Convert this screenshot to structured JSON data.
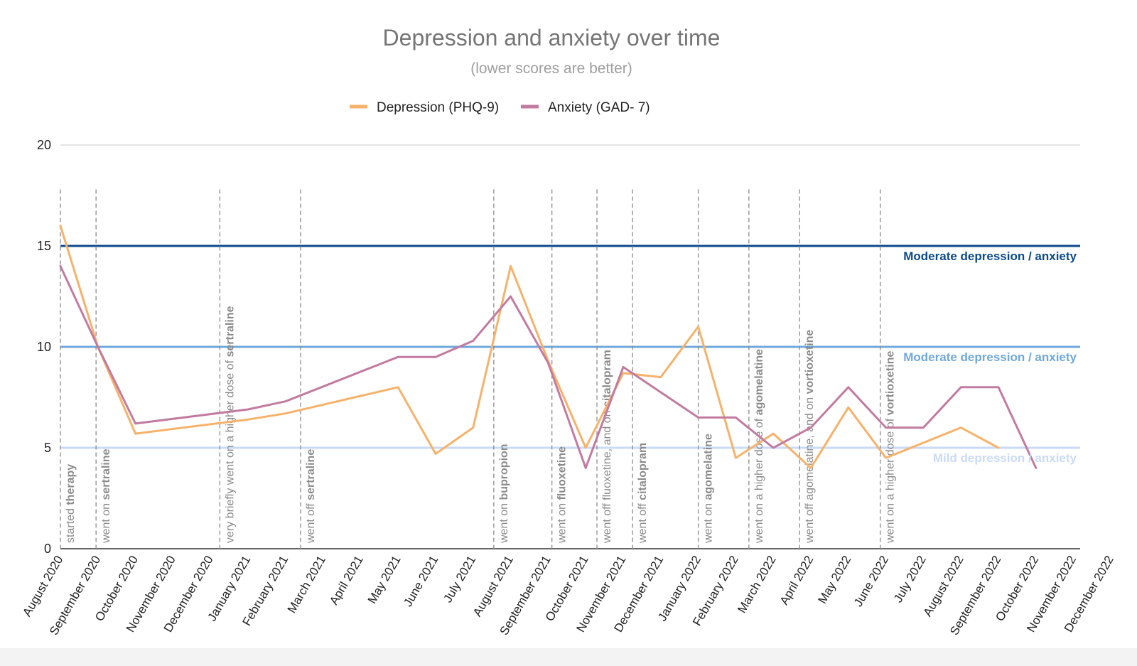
{
  "chart_data": {
    "type": "line",
    "title": "Depression and anxiety over time",
    "subtitle": "(lower scores are better)",
    "legend_position": "top-center",
    "grid": true,
    "ylim": [
      0,
      20
    ],
    "yticks": [
      "0",
      "5",
      "10",
      "15",
      "20"
    ],
    "categories": [
      "August 2020",
      "September 2020",
      "October 2020",
      "November 2020",
      "December 2020",
      "January 2021",
      "February 2021",
      "March 2021",
      "April 2021",
      "May 2021",
      "June 2021",
      "July 2021",
      "August 2021",
      "September 2021",
      "October 2021",
      "November 2021",
      "December 2021",
      "January 2022",
      "February 2022",
      "March 2022",
      "April 2022",
      "May 2022",
      "June 2022",
      "July 2022",
      "August 2022",
      "September 2022",
      "October 2022",
      "November 2022",
      "December 2022"
    ],
    "series": [
      {
        "name": "Depression (PHQ-9)",
        "color": "#f6b26b",
        "points": [
          [
            0,
            16
          ],
          [
            1,
            10
          ],
          [
            2,
            5.7
          ],
          [
            5,
            6.4
          ],
          [
            6,
            6.7
          ],
          [
            9,
            8
          ],
          [
            10,
            4.7
          ],
          [
            11,
            6
          ],
          [
            12,
            14
          ],
          [
            13,
            9.3
          ],
          [
            14,
            5
          ],
          [
            15,
            8.7
          ],
          [
            16,
            8.5
          ],
          [
            17,
            11
          ],
          [
            18,
            4.5
          ],
          [
            19,
            5.7
          ],
          [
            20,
            4
          ],
          [
            21,
            7
          ],
          [
            22,
            4.5
          ],
          [
            24,
            6
          ],
          [
            25,
            5
          ]
        ]
      },
      {
        "name": "Anxiety (GAD- 7)",
        "color": "#c27ba0",
        "points": [
          [
            0,
            14
          ],
          [
            1,
            10
          ],
          [
            2,
            6.2
          ],
          [
            5,
            6.9
          ],
          [
            6,
            7.3
          ],
          [
            9,
            9.5
          ],
          [
            10,
            9.5
          ],
          [
            11,
            10.3
          ],
          [
            12,
            12.5
          ],
          [
            13,
            9.2
          ],
          [
            14,
            4
          ],
          [
            15,
            9
          ],
          [
            17,
            6.5
          ],
          [
            18,
            6.5
          ],
          [
            19,
            5
          ],
          [
            20,
            6
          ],
          [
            21,
            8
          ],
          [
            22,
            6
          ],
          [
            23,
            6
          ],
          [
            24,
            8
          ],
          [
            25,
            8
          ],
          [
            26,
            4
          ]
        ]
      }
    ],
    "reference_lines": [
      {
        "value": 15,
        "label": "Moderate depression / anxiety",
        "color": "#0b4a8b"
      },
      {
        "value": 10,
        "label": "Moderate depression / anxiety",
        "color": "#6fa8dc"
      },
      {
        "value": 5,
        "label": "Mild depression / anxiety",
        "color": "#c9daf8"
      }
    ],
    "events": [
      {
        "x": 0.0,
        "normal": "started ",
        "bold": "therapy"
      },
      {
        "x": 0.95,
        "normal": "went on ",
        "bold": "sertraline"
      },
      {
        "x": 4.25,
        "normal": "very briefly went on a higher dose of  ",
        "bold": "sertraline"
      },
      {
        "x": 6.4,
        "normal": "went off ",
        "bold": "sertraline"
      },
      {
        "x": 11.55,
        "normal": "went on ",
        "bold": "bupropion"
      },
      {
        "x": 13.1,
        "normal": "went on ",
        "bold": "fluoxetine"
      },
      {
        "x": 14.3,
        "normal": "went off fluoxetine, and on ",
        "bold": "citalopram"
      },
      {
        "x": 15.25,
        "normal": "went off ",
        "bold": "citalopram"
      },
      {
        "x": 17.0,
        "normal": "went on ",
        "bold": "agomelatine"
      },
      {
        "x": 18.35,
        "normal": "went on a higher dose of ",
        "bold": "agomelatine"
      },
      {
        "x": 19.7,
        "normal": "went off agomelatine, and on ",
        "bold": "vortioxetine"
      },
      {
        "x": 21.85,
        "normal": "went on a higher dose of ",
        "bold": "vortioxetine"
      }
    ]
  }
}
